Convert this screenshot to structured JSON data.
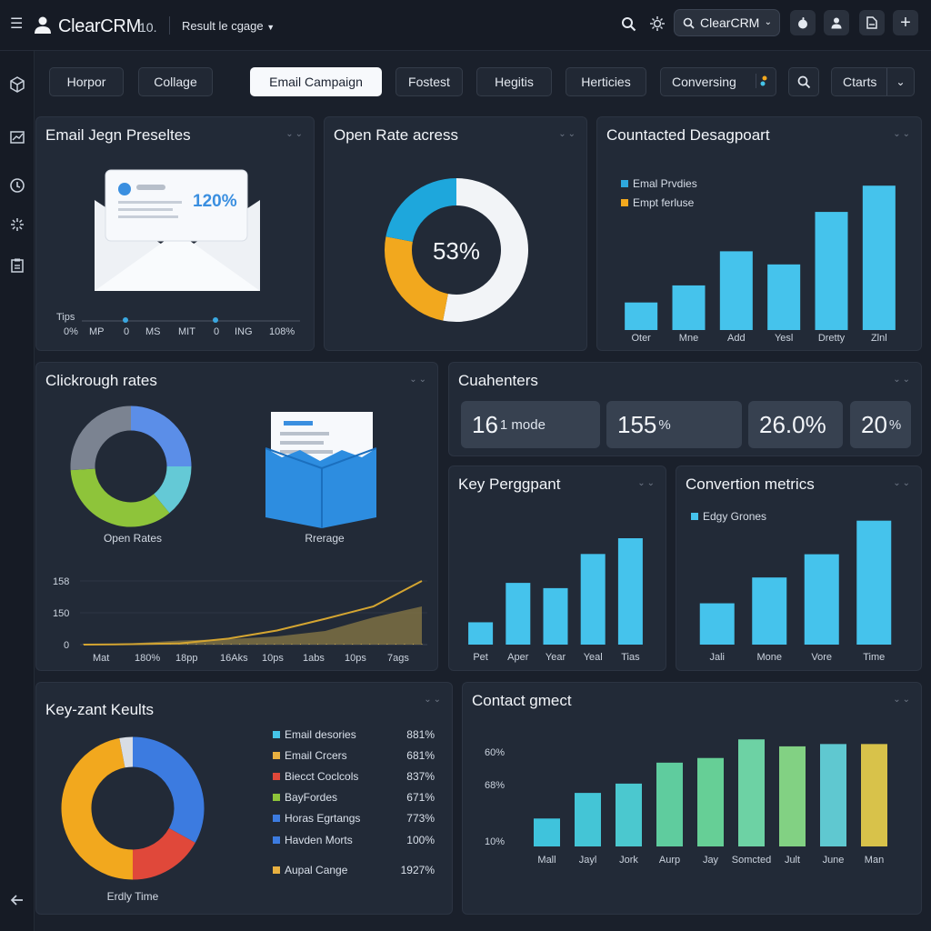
{
  "header": {
    "app_name": "ClearCRM",
    "app_sub": "10.",
    "crumb": "Result le cgage",
    "search_label": "ClearCRM"
  },
  "tabs": [
    "Horpor",
    "Collage",
    "Email Campaign",
    "Fostest",
    "Hegitis",
    "Herticies",
    "Conversing"
  ],
  "tab_right": "Ctarts",
  "panels": {
    "presets": {
      "title": "Email Jegn Preseltes",
      "badge": "120%",
      "axis_label": "Tips",
      "ticks": [
        "0%",
        "MP",
        "0",
        "MS",
        "MIT",
        "0",
        "ING",
        "108%"
      ]
    },
    "open_rate": {
      "title": "Open Rate acress",
      "value": "53%"
    },
    "contacted": {
      "title": "Countacted Desagpoart",
      "legend": [
        "Emal Prvdies",
        "Empt ferluse"
      ]
    },
    "clickthrough": {
      "title": "Clickrough rates",
      "donut_caption": "Open Rates",
      "box_caption": "Rrerage",
      "y_ticks": [
        "158",
        "150",
        "0"
      ],
      "x_ticks": [
        "Mat",
        "180%",
        "18pp",
        "16Aks",
        "10ps",
        "1abs",
        "10ps",
        "7ags"
      ]
    },
    "counters": {
      "title": "Cuahenters",
      "stats": [
        {
          "main": "16",
          "suffix": "1 mode"
        },
        {
          "main": "155",
          "suffix": "%"
        },
        {
          "main": "26.0%",
          "suffix": ""
        },
        {
          "main": "20",
          "suffix": "%"
        }
      ]
    },
    "key_perg": {
      "title": "Key Perggpant"
    },
    "conversion": {
      "title": "Convertion metrics",
      "legend": "Edgy Grones"
    },
    "key_results": {
      "title": "Key-zant Keults",
      "donut_caption": "Erdly Time",
      "rows": [
        {
          "label": "Email desories",
          "value": "881%",
          "color": "#45c4e8"
        },
        {
          "label": "Email Crcers",
          "value": "681%",
          "color": "#e8b040"
        },
        {
          "label": "Biecct Coclcols",
          "value": "837%",
          "color": "#e0483a"
        },
        {
          "label": "BayFordes",
          "value": "671%",
          "color": "#8ec43a"
        },
        {
          "label": "Horas Egrtangs",
          "value": "773%",
          "color": "#3c7be0"
        },
        {
          "label": "Havden Morts",
          "value": "100%",
          "color": "#3c7be0"
        },
        {
          "label": "Aupal Cange",
          "value": "1927%",
          "color": "#e8b040"
        }
      ]
    },
    "contact": {
      "title": "Contact gmect"
    }
  },
  "chart_data": [
    {
      "type": "bar",
      "id": "contacted",
      "categories": [
        "Oter",
        "Mne",
        "Add",
        "Yesl",
        "Dretty",
        "Zlnl"
      ],
      "values": [
        21,
        34,
        60,
        50,
        90,
        110
      ],
      "ylim": [
        0,
        115
      ]
    },
    {
      "type": "line",
      "id": "clickthrough",
      "x": [
        "Mat",
        "180%",
        "18pp",
        "16Aks",
        "10ps",
        "1abs",
        "10ps",
        "7ags"
      ],
      "series": [
        {
          "values": [
            0,
            1,
            3,
            15,
            35,
            64,
            95,
            158
          ],
          "color": "#d4a531"
        }
      ],
      "y_ticks": [
        "158",
        "150",
        "0"
      ]
    },
    {
      "type": "area",
      "id": "clickthrough-area",
      "x": [
        "Mat",
        "180%",
        "18pp",
        "16Aks",
        "10ps",
        "1abs",
        "10ps",
        "7ags"
      ],
      "values": [
        0,
        1,
        3,
        4,
        6,
        10,
        20,
        28
      ]
    },
    {
      "type": "bar",
      "id": "key_perg",
      "categories": [
        "Pet",
        "Aper",
        "Year",
        "Yeal",
        "Tias"
      ],
      "values": [
        17,
        47,
        43,
        69,
        81
      ],
      "ylim": [
        0,
        90
      ]
    },
    {
      "type": "bar",
      "id": "conversion",
      "categories": [
        "Jali",
        "Mone",
        "Vore",
        "Time"
      ],
      "values": [
        32,
        52,
        70,
        96
      ],
      "ylim": [
        0,
        100
      ]
    },
    {
      "type": "bar",
      "id": "contact",
      "categories": [
        "Mall",
        "Jayl",
        "Jork",
        "Aurp",
        "Jay",
        "Somcted",
        "Jult",
        "June",
        "Man"
      ],
      "values": [
        12,
        23,
        27,
        36,
        38,
        46,
        43,
        44,
        44
      ],
      "y_ticks": [
        "60%",
        "68%",
        "10%"
      ],
      "ylim": [
        0,
        50
      ]
    },
    {
      "type": "pie",
      "id": "open_rate",
      "values": [
        53,
        25,
        22
      ],
      "colors": [
        "#f2f4f7",
        "#f2a81e",
        "#1ea7dc"
      ]
    },
    {
      "type": "pie",
      "id": "clickthrough-donut",
      "values": [
        25,
        14,
        35,
        26
      ],
      "colors": [
        "#5b8ee8",
        "#64c9d6",
        "#8ec43a",
        "#7b8391"
      ]
    },
    {
      "type": "pie",
      "id": "key_results",
      "values": [
        33,
        17,
        47,
        3
      ],
      "colors": [
        "#3c7be0",
        "#e0483a",
        "#f2a81e",
        "#d8dde5"
      ]
    }
  ]
}
